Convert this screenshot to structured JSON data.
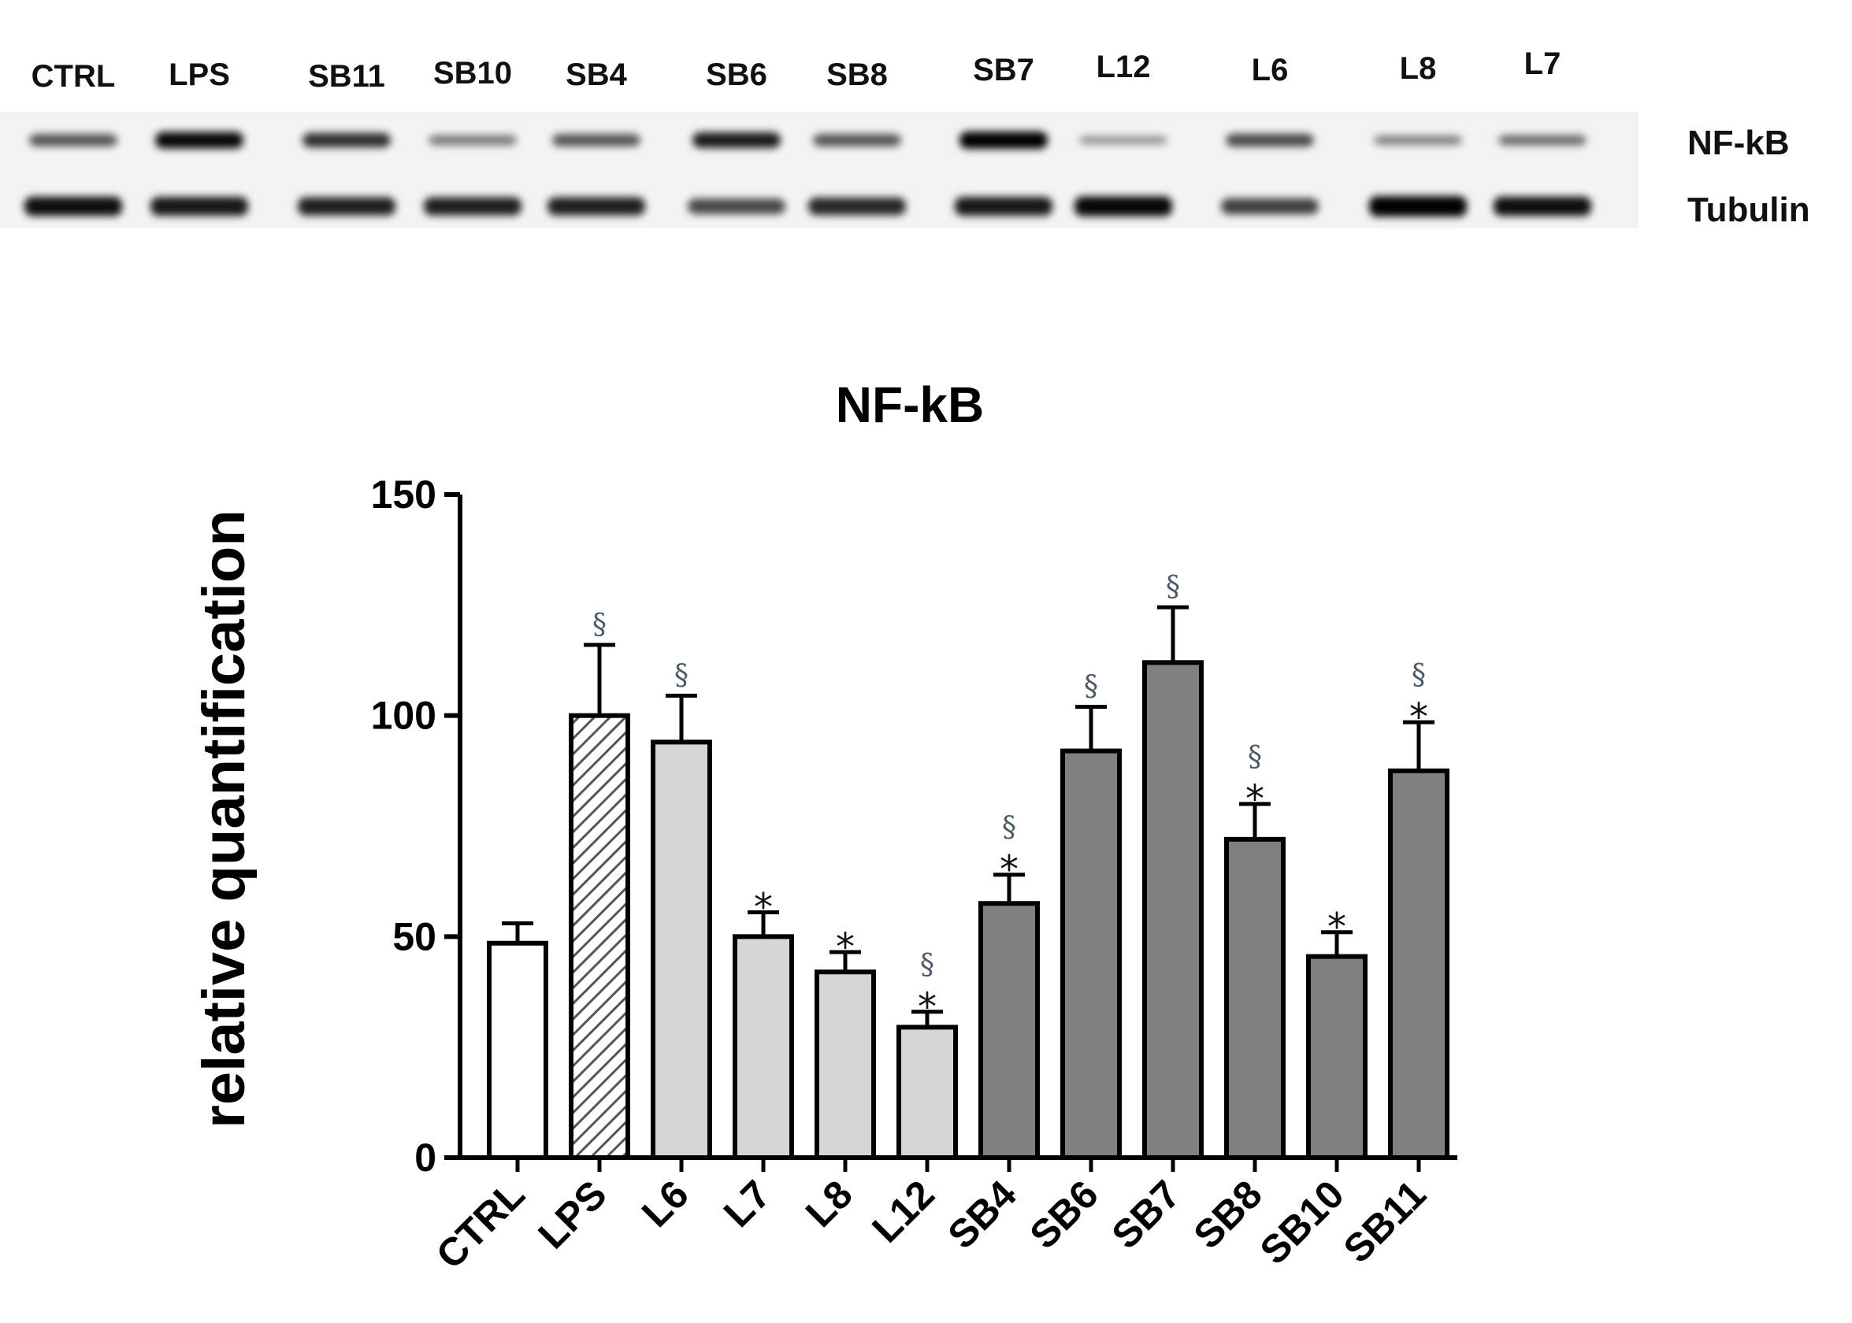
{
  "blot": {
    "lanes": [
      "CTRL",
      "LPS",
      "SB11",
      "SB10",
      "SB4",
      "SB6",
      "SB8",
      "SB7",
      "L12",
      "L6",
      "L8",
      "L7"
    ],
    "nfkb_intensity": [
      0.55,
      0.95,
      0.75,
      0.35,
      0.55,
      0.85,
      0.55,
      1.0,
      0.2,
      0.6,
      0.3,
      0.4
    ],
    "tubulin_intensity": [
      0.9,
      0.85,
      0.8,
      0.8,
      0.8,
      0.55,
      0.75,
      0.85,
      0.95,
      0.6,
      1.0,
      0.9
    ],
    "bands": [
      {
        "key": "nfkb",
        "label": "NF-kB"
      },
      {
        "key": "tubulin",
        "label": "Tubulin"
      }
    ]
  },
  "chart_data": {
    "type": "bar",
    "title": "NF-kB",
    "xlabel": "",
    "ylabel": "relative quantification",
    "ylim": [
      0,
      150
    ],
    "yticks": [
      0,
      50,
      100,
      150
    ],
    "grid": false,
    "categories": [
      "CTRL",
      "LPS",
      "L6",
      "L7",
      "L8",
      "L12",
      "SB4",
      "SB6",
      "SB7",
      "SB8",
      "SB10",
      "SB11"
    ],
    "values": [
      48.5,
      100,
      94,
      50,
      42,
      29.5,
      57.5,
      92,
      112,
      72,
      45.5,
      87.5
    ],
    "errors": [
      4.5,
      16,
      10.5,
      5.5,
      4.5,
      3.5,
      6.5,
      10,
      12.5,
      8,
      5.5,
      11
    ],
    "fill": [
      "white",
      "hatched",
      "light",
      "light",
      "light",
      "light",
      "dark",
      "dark",
      "dark",
      "dark",
      "dark",
      "dark"
    ],
    "significance": [
      [],
      [
        "§"
      ],
      [
        "§"
      ],
      [
        "*"
      ],
      [
        "*"
      ],
      [
        "§",
        "*"
      ],
      [
        "§",
        "*"
      ],
      [
        "§"
      ],
      [
        "§"
      ],
      [
        "§",
        "*"
      ],
      [
        "*"
      ],
      [
        "§",
        "*"
      ]
    ],
    "colors": {
      "white": "#ffffff",
      "light": "#d6d6d6",
      "dark": "#808080",
      "outline": "#000000",
      "hatch": "#555555"
    }
  }
}
